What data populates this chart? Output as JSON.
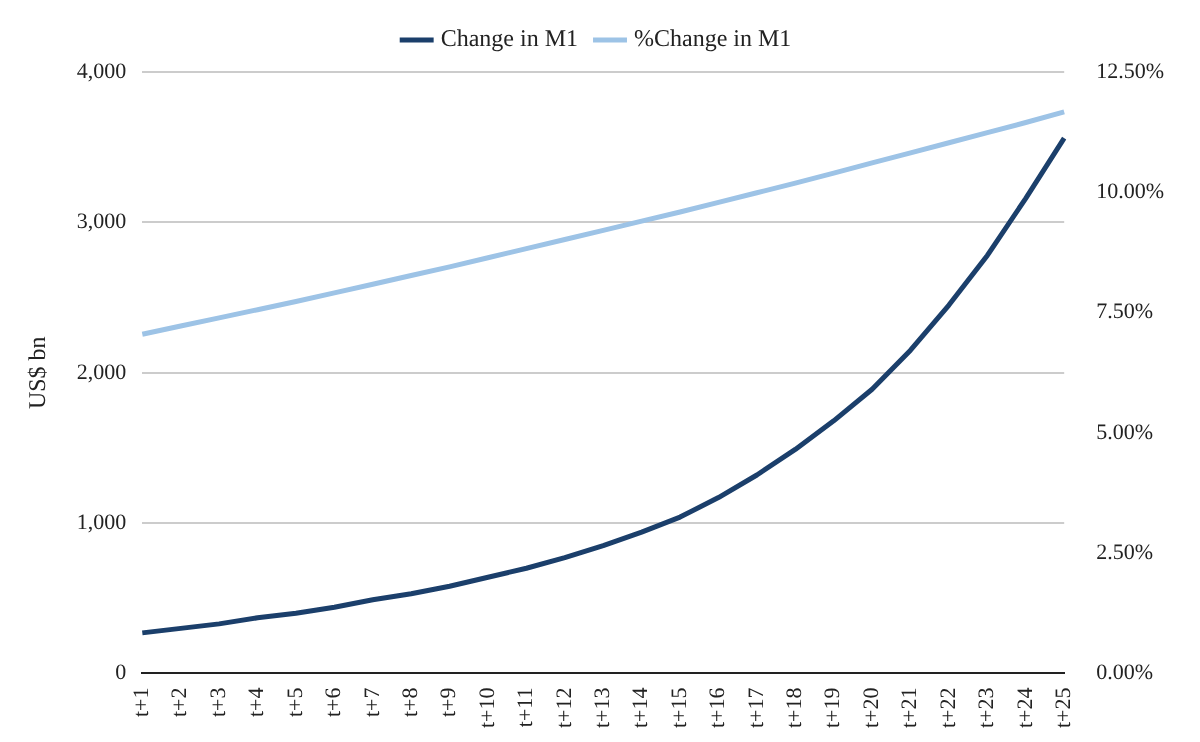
{
  "chart_data": {
    "type": "line",
    "ylabel": "US$ bn",
    "categories": [
      "t+1",
      "t+2",
      "t+3",
      "t+4",
      "t+5",
      "t+6",
      "t+7",
      "t+8",
      "t+9",
      "t+10",
      "t+11",
      "t+12",
      "t+13",
      "t+14",
      "t+15",
      "t+16",
      "t+17",
      "t+18",
      "t+19",
      "t+20",
      "t+21",
      "t+22",
      "t+23",
      "t+24",
      "t+25"
    ],
    "series": [
      {
        "name": "Change in M1",
        "color": "#1b3f6b",
        "values": [
          270,
          300,
          330,
          370,
          400,
          440,
          490,
          530,
          580,
          640,
          700,
          770,
          850,
          940,
          1040,
          1170,
          1320,
          1490,
          1680,
          1890,
          2150,
          2450,
          2780,
          3160,
          3560
        ]
      },
      {
        "name": "%Change in M1",
        "color": "#9dc3e6",
        "axis": "y2",
        "values": [
          7.05,
          7.22,
          7.39,
          7.56,
          7.73,
          7.91,
          8.09,
          8.27,
          8.45,
          8.64,
          8.83,
          9.02,
          9.21,
          9.4,
          9.59,
          9.79,
          9.99,
          10.19,
          10.4,
          10.61,
          10.82,
          11.03,
          11.24,
          11.45,
          11.67
        ]
      }
    ],
    "ylim": [
      0,
      4000
    ],
    "yticks": [
      0,
      {
        "value": 1000,
        "label": "1,000"
      },
      {
        "value": 2000,
        "label": "2,000"
      },
      {
        "value": 3000,
        "label": "3,000"
      },
      {
        "value": 4000,
        "label": "4,000"
      }
    ],
    "y2lim": [
      0,
      12.5
    ],
    "y2ticks": [
      {
        "value": 0,
        "label": "0.00%"
      },
      {
        "value": 2.5,
        "label": "2.50%"
      },
      {
        "value": 5,
        "label": "5.00%"
      },
      {
        "value": 7.5,
        "label": "7.50%"
      },
      {
        "value": 10,
        "label": "10.00%"
      },
      {
        "value": 12.5,
        "label": "12.50%"
      }
    ],
    "grid": "y",
    "legend": "top",
    "marker": "none",
    "line_style": "solid"
  }
}
